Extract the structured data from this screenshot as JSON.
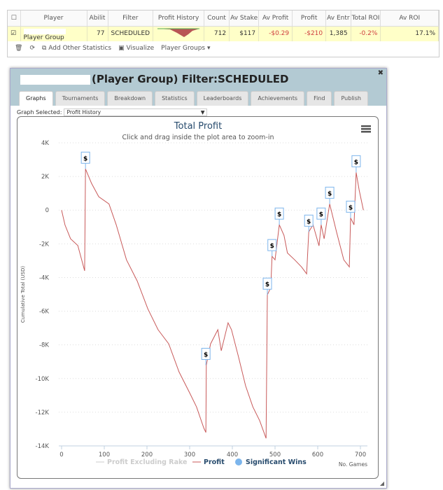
{
  "table": {
    "headers": [
      "Player",
      "Abilit",
      "Filter",
      "Profit History",
      "Count",
      "Av Stake",
      "Av Profit",
      "Profit",
      "Av Entr",
      "Total ROI",
      "Av ROI"
    ],
    "row": {
      "checked": true,
      "player": "Player Group",
      "ability": "77",
      "filter": "SCHEDULED",
      "count": "712",
      "av_stake": "$117",
      "av_profit": "-$0.29",
      "profit": "-$210",
      "av_entr": "1,385",
      "total_roi": "-0.2%",
      "av_roi": "17.1%"
    },
    "toolbar": {
      "add_stats": "Add Other Statistics",
      "visualize": "Visualize",
      "player_groups": "Player Groups"
    }
  },
  "dialog": {
    "title": "(Player Group) Filter:SCHEDULED",
    "tabs": [
      "Graphs",
      "Tournaments",
      "Breakdown",
      "Statistics",
      "Leaderboards",
      "Achievements",
      "Find",
      "Publish"
    ],
    "graph_selected_label": "Graph Selected:",
    "graph_selected_value": "Profit History"
  },
  "chart_data": {
    "type": "line",
    "title": "Total Profit",
    "subtitle": "Click and drag inside the plot area to zoom-in",
    "xlabel": "No. Games",
    "ylabel": "Cumulative Total (USD)",
    "xlim": [
      0,
      720
    ],
    "ylim": [
      -14000,
      4000
    ],
    "xticks": [
      0,
      100,
      200,
      300,
      400,
      500,
      600,
      700
    ],
    "yticks": [
      4000,
      2000,
      0,
      -2000,
      -4000,
      -6000,
      -8000,
      -10000,
      -12000,
      -14000
    ],
    "ytick_labels": [
      "4K",
      "2K",
      "0",
      "-2K",
      "-4K",
      "-6K",
      "-8K",
      "-10K",
      "-12K",
      "-14K"
    ],
    "grid": true,
    "legend": [
      "Profit Excluding Rake",
      "Profit",
      "Significant Wins"
    ],
    "series": [
      {
        "name": "Profit",
        "color": "#c85a5a",
        "x": [
          0,
          8,
          21,
          38,
          54,
          56,
          70,
          87,
          111,
          128,
          152,
          177,
          202,
          226,
          251,
          275,
          300,
          316,
          333,
          338,
          339,
          349,
          366,
          374,
          390,
          398,
          415,
          431,
          448,
          464,
          479,
          482,
          490,
          493,
          500,
          510,
          521,
          529,
          546,
          562,
          574,
          579,
          589,
          603,
          608,
          615,
          628,
          644,
          661,
          674,
          677,
          685,
          690,
          697,
          707
        ],
        "y": [
          0,
          -880,
          -1700,
          -2100,
          -3600,
          2450,
          1600,
          800,
          370,
          -870,
          -2950,
          -4200,
          -5860,
          -7100,
          -7940,
          -9600,
          -10850,
          -11680,
          -12930,
          -13200,
          -9200,
          -7940,
          -7100,
          -8350,
          -6690,
          -7100,
          -8770,
          -10430,
          -11680,
          -12500,
          -13550,
          -5030,
          -4600,
          -2740,
          -2950,
          -870,
          -1500,
          -2540,
          -2950,
          -3370,
          -3780,
          -1290,
          -870,
          -2120,
          -870,
          -1700,
          370,
          -1290,
          -2950,
          -3370,
          -460,
          -870,
          2240,
          1200,
          0
        ]
      }
    ],
    "significant_wins": {
      "label": "$",
      "color": "#7cb5ec",
      "x": [
        56,
        338,
        482,
        493,
        510,
        579,
        608,
        628,
        677,
        690
      ],
      "y": [
        2450,
        -9200,
        -5030,
        -2740,
        -870,
        -1290,
        -870,
        370,
        -460,
        2240
      ]
    }
  }
}
